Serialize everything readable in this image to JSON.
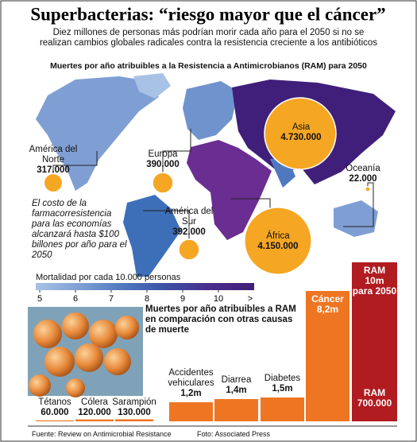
{
  "header": {
    "title": "Superbacterias: “riesgo mayor que el cáncer”",
    "subtitle": "Diez millones de personas más podrían morir cada año para el 2050 si no se realizan cambios globales radicales contra la resistencia creciente a los antibióticos"
  },
  "chart_data": [
    {
      "type": "bubble-map",
      "title": "Muertes por año atribuibles a la Resistencia a Antimicrobianos (RAM) para 2050",
      "categories": [
        "América del Norte",
        "Europa",
        "Asia",
        "Oceanía",
        "América del Sur",
        "África"
      ],
      "values": [
        317000,
        390000,
        4730000,
        22000,
        392000,
        4150000
      ],
      "value_labels": [
        "317.000",
        "390.000",
        "4.730.000",
        "22.000",
        "392.000",
        "4.150.000"
      ],
      "color": "#f5a623",
      "colorbar": {
        "label": "Mortalidad por cada 10.000 personas",
        "ticks": [
          5,
          6,
          7,
          8,
          9,
          10
        ],
        "overflow_label": ">",
        "colors": [
          "#a8c2e6",
          "#7f9fd4",
          "#4f78bf",
          "#3b4fa3",
          "#4a2c8a",
          "#3f1f7a"
        ]
      }
    },
    {
      "type": "bar",
      "title": "Muertes por año atribuibles a RAM en comparación con otras causas de muerte",
      "categories": [
        "Tétanos",
        "Cólera",
        "Sarampión",
        "Accidentes vehiculares",
        "Diarrea",
        "Diabetes",
        "Cáncer",
        "RAM"
      ],
      "values": [
        60000,
        120000,
        130000,
        1200000,
        1400000,
        1500000,
        8200000,
        10000000
      ],
      "value_labels": [
        "60.000",
        "120.000",
        "130.000",
        "1,2m",
        "1,4m",
        "1,5m",
        "8,2m",
        "10m"
      ],
      "colors": [
        "#ee7623",
        "#ee7623",
        "#ee7623",
        "#ee7623",
        "#ee7623",
        "#ee7623",
        "#ee7623",
        "#b01c20"
      ],
      "ram_horizon": "para 2050",
      "ram_current_label": "RAM",
      "ram_current_value": "700.000"
    }
  ],
  "annotation": "El costo de la farmacorresistencia para las economías alcanzará hasta $100 billones por año para el 2050",
  "footer": {
    "source": "Fuente: Review on Antimicrobial Resistance",
    "photo": "Foto: Associated Press"
  }
}
